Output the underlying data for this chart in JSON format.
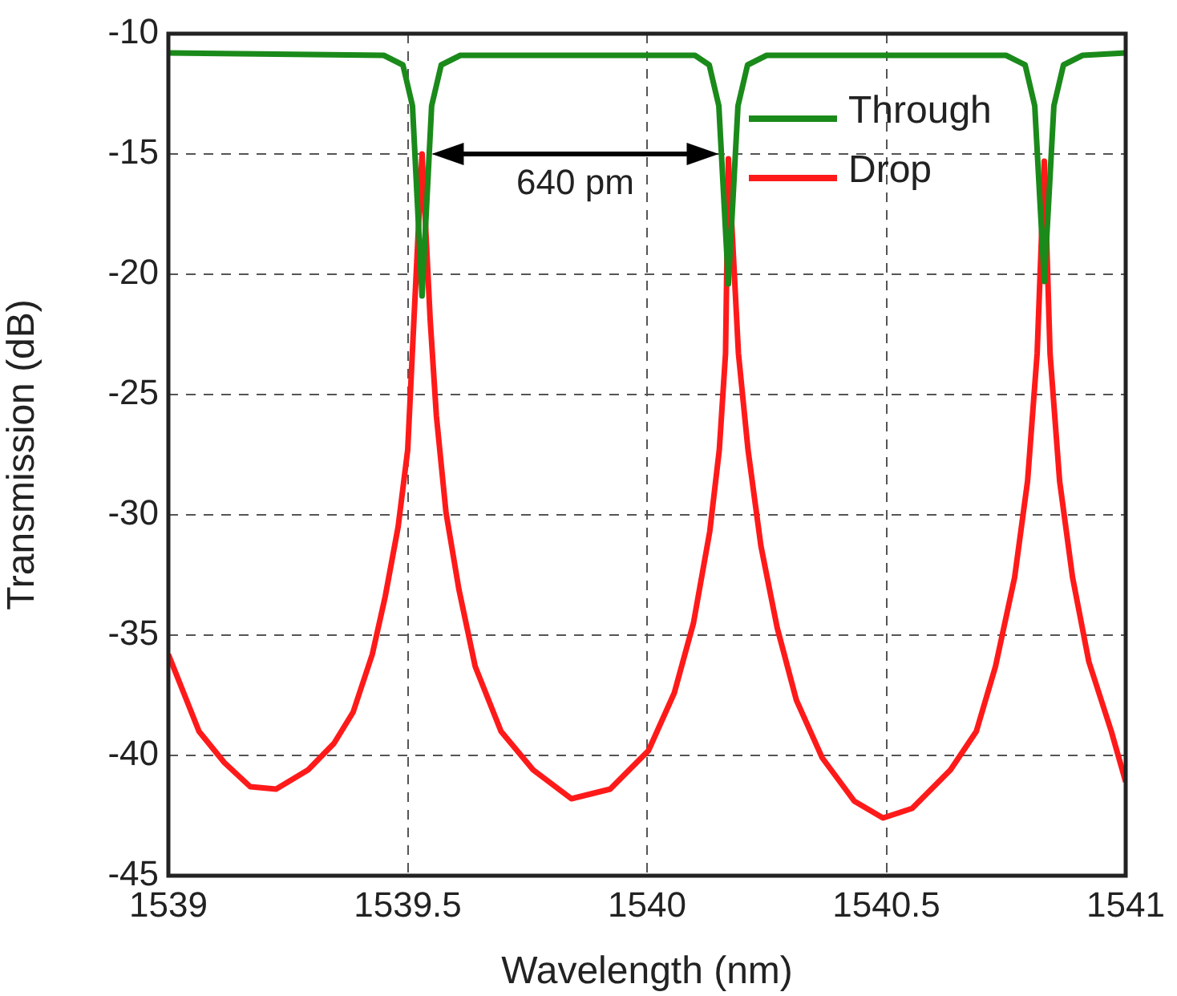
{
  "chart_data": {
    "type": "line",
    "xlabel": "Wavelength (nm)",
    "ylabel": "Transmission (dB)",
    "xlim": [
      1539,
      1541
    ],
    "xticks": [
      1539,
      1539.5,
      1540,
      1540.5,
      1541
    ],
    "ylim": [
      -45,
      -10
    ],
    "yticks": [
      -45,
      -40,
      -35,
      -30,
      -25,
      -20,
      -15,
      -10
    ],
    "grid": true,
    "legend": "top right",
    "marker": "none",
    "line_style": "solid",
    "annotations": [
      "640 pm"
    ],
    "series": [
      {
        "name": "Through",
        "color": "#1a8a1a",
        "x": [
          1539,
          1539.45,
          1539.49,
          1539.51,
          1539.53,
          1539.55,
          1539.57,
          1539.61,
          1540.1,
          1540.13,
          1540.15,
          1540.17,
          1540.19,
          1540.21,
          1540.25,
          1540.75,
          1540.79,
          1540.81,
          1540.83,
          1540.85,
          1540.87,
          1540.91,
          1541
        ],
        "values": [
          -10.8,
          -10.9,
          -11.3,
          -13,
          -20.9,
          -13,
          -11.3,
          -10.9,
          -10.9,
          -11.3,
          -13,
          -20.4,
          -13,
          -11.3,
          -10.9,
          -10.9,
          -11.3,
          -13,
          -20.3,
          -13,
          -11.3,
          -10.9,
          -10.8
        ]
      },
      {
        "name": "Drop",
        "color": "#ff1a1a",
        "x": [
          1539,
          1539.064,
          1539.117,
          1539.171,
          1539.225,
          1539.292,
          1539.346,
          1539.386,
          1539.426,
          1539.453,
          1539.48,
          1539.5,
          1539.513,
          1539.53,
          1539.547,
          1539.56,
          1539.58,
          1539.607,
          1539.641,
          1539.695,
          1539.762,
          1539.842,
          1539.923,
          1540.003,
          1540.057,
          1540.097,
          1540.131,
          1540.151,
          1540.164,
          1540.17,
          1540.191,
          1540.211,
          1540.238,
          1540.272,
          1540.312,
          1540.366,
          1540.433,
          1540.493,
          1540.554,
          1540.634,
          1540.688,
          1540.728,
          1540.768,
          1540.795,
          1540.815,
          1540.83,
          1540.842,
          1540.862,
          1540.889,
          1540.923,
          1540.97,
          1541
        ],
        "values": [
          -35.8,
          -39,
          -40.3,
          -41.3,
          -41.4,
          -40.6,
          -39.5,
          -38.2,
          -35.8,
          -33.4,
          -30.5,
          -27.3,
          -21.9,
          -15,
          -21.9,
          -25.9,
          -29.9,
          -33.1,
          -36.3,
          -39,
          -40.6,
          -41.8,
          -41.4,
          -39.8,
          -37.4,
          -34.5,
          -30.7,
          -27.3,
          -23.3,
          -15.2,
          -23.3,
          -27.3,
          -31.3,
          -34.7,
          -37.7,
          -40.1,
          -41.9,
          -42.6,
          -42.2,
          -40.6,
          -39,
          -36.3,
          -32.6,
          -28.6,
          -23.3,
          -15.3,
          -23.3,
          -28.6,
          -32.6,
          -36.1,
          -39,
          -41.1
        ]
      }
    ]
  }
}
